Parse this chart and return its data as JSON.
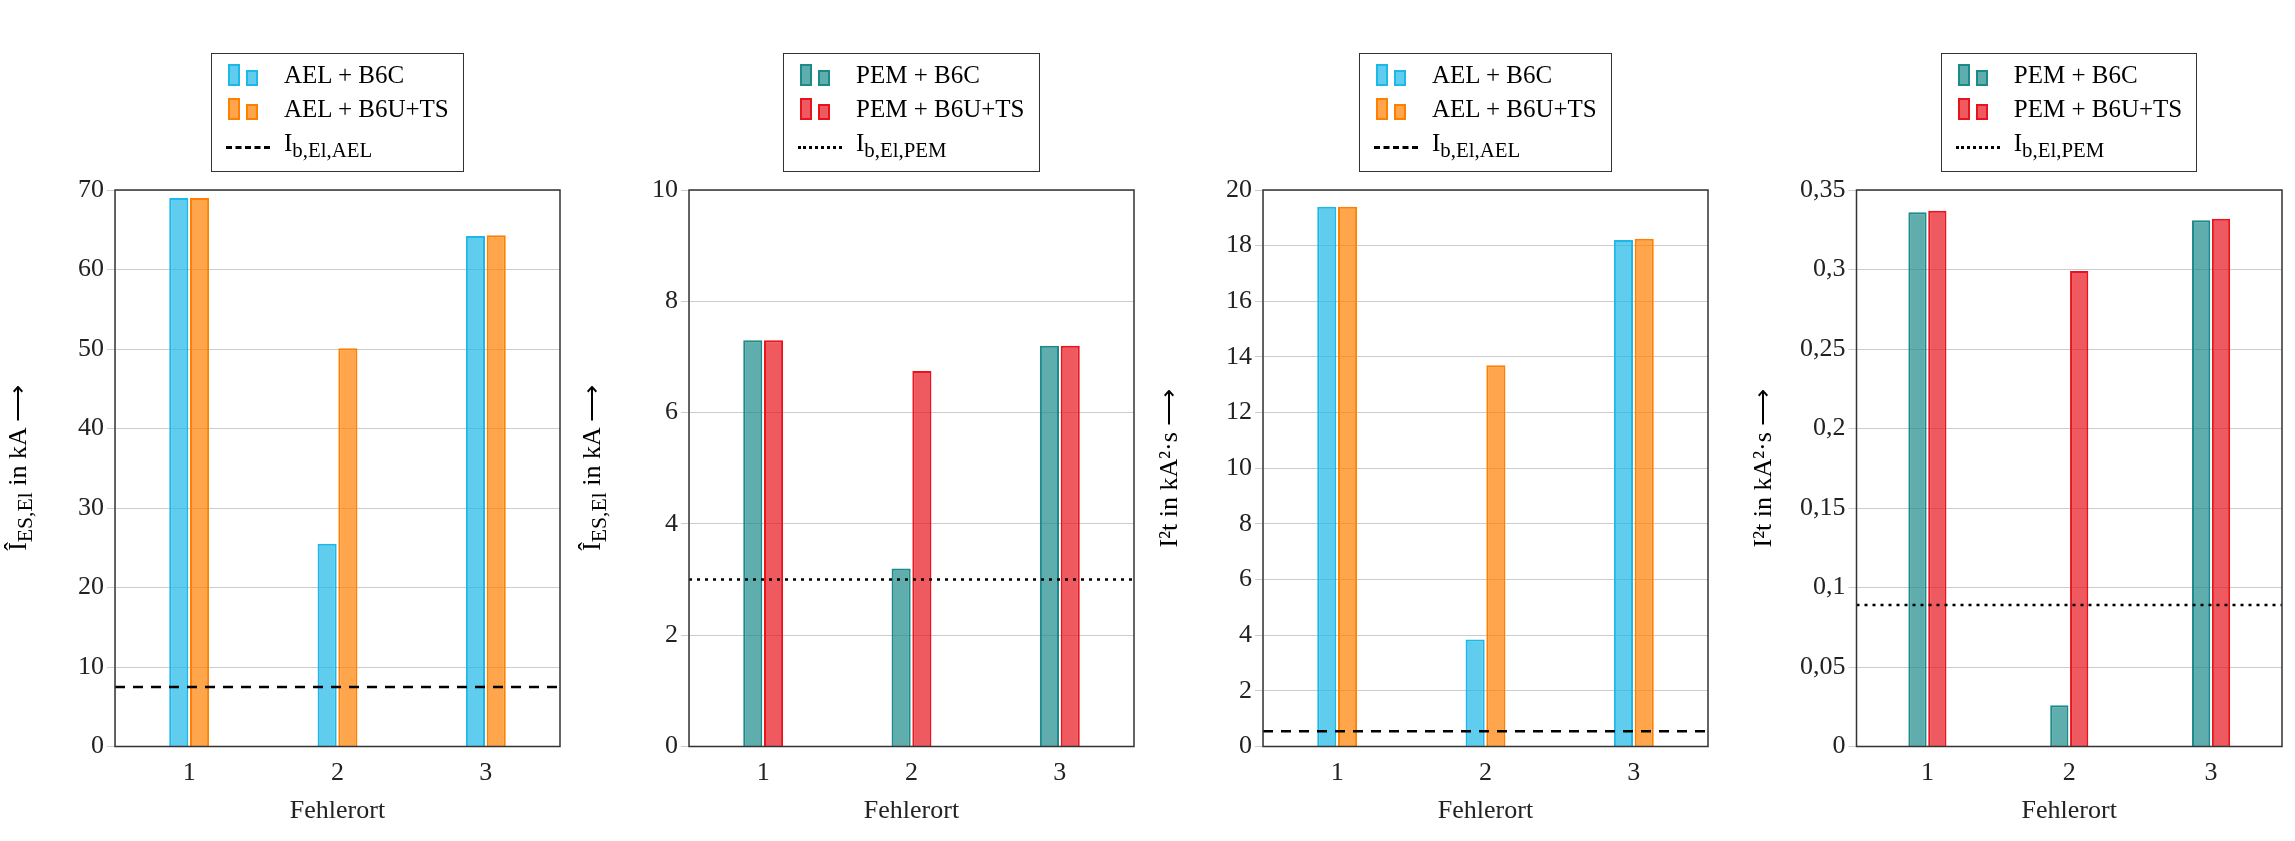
{
  "chart_data": [
    {
      "type": "bar",
      "ylabel": "Î$_{ES,El}$ in kA ⟶",
      "xlabel": "Fehlerort",
      "categories": [
        "1",
        "2",
        "3"
      ],
      "series": [
        {
          "name": "AEL + B6C",
          "color": "#1cb8e8",
          "values": [
            69,
            25.5,
            64.2
          ]
        },
        {
          "name": "AEL + B6U+TS",
          "color": "#ff8000",
          "values": [
            69,
            50.1,
            64.3
          ]
        }
      ],
      "ylim": [
        0,
        70
      ],
      "yticks": [
        0,
        10,
        20,
        30,
        40,
        50,
        60,
        70
      ],
      "grid": "y",
      "legend": "top",
      "ref_lines": [
        {
          "axis": "y",
          "value": 7.5,
          "label": "I$_{b,El,AEL}$",
          "color": "#000000",
          "line_style": "dashed"
        }
      ]
    },
    {
      "type": "bar",
      "ylabel": "Î$_{ES,El}$ in kA ⟶",
      "xlabel": "Fehlerort",
      "categories": [
        "1",
        "2",
        "3"
      ],
      "series": [
        {
          "name": "PEM + B6C",
          "color": "#1b8a8a",
          "values": [
            7.3,
            3.2,
            7.2
          ]
        },
        {
          "name": "PEM + B6U+TS",
          "color": "#e8141d",
          "values": [
            7.3,
            6.75,
            7.2
          ]
        }
      ],
      "ylim": [
        0,
        10
      ],
      "yticks": [
        0,
        2,
        4,
        6,
        8,
        10
      ],
      "grid": "y",
      "legend": "top",
      "ref_lines": [
        {
          "axis": "y",
          "value": 3,
          "label": "I$_{b,El,PEM}$",
          "color": "#000000",
          "line_style": "dotted"
        }
      ]
    },
    {
      "type": "bar",
      "ylabel": "I²t in kA²·s ⟶",
      "xlabel": "Fehlerort",
      "categories": [
        "1",
        "2",
        "3"
      ],
      "series": [
        {
          "name": "AEL + B6C",
          "color": "#1cb8e8",
          "values": [
            19.4,
            3.85,
            18.2
          ]
        },
        {
          "name": "AEL + B6U+TS",
          "color": "#ff8000",
          "values": [
            19.4,
            13.7,
            18.25
          ]
        }
      ],
      "ylim": [
        0,
        20
      ],
      "yticks": [
        0,
        2,
        4,
        6,
        8,
        10,
        12,
        14,
        16,
        18,
        20
      ],
      "grid": "y",
      "legend": "top",
      "ref_lines": [
        {
          "axis": "y",
          "value": 0.55,
          "label": "I$_{b,El,AEL}$",
          "color": "#000000",
          "line_style": "dashed"
        }
      ]
    },
    {
      "type": "bar",
      "ylabel": "I²t in kA²·s ⟶",
      "xlabel": "Fehlerort",
      "categories": [
        "1",
        "2",
        "3"
      ],
      "series": [
        {
          "name": "PEM + B6C",
          "color": "#1b8a8a",
          "values": [
            0.336,
            0.026,
            0.331
          ]
        },
        {
          "name": "PEM + B6U+TS",
          "color": "#e8141d",
          "values": [
            0.337,
            0.299,
            0.332
          ]
        }
      ],
      "ylim": [
        0,
        0.35
      ],
      "yticks": [
        0,
        {
          "value": 0.05,
          "label": "0,05"
        },
        {
          "value": 0.1,
          "label": "0,1"
        },
        {
          "value": 0.15,
          "label": "0,15"
        },
        {
          "value": 0.2,
          "label": "0,2"
        },
        {
          "value": 0.25,
          "label": "0,25"
        },
        {
          "value": 0.3,
          "label": "0,3"
        },
        {
          "value": 0.35,
          "label": "0,35"
        }
      ],
      "grid": "y",
      "legend": "top",
      "ref_lines": [
        {
          "axis": "y",
          "value": 0.089,
          "label": "I$_{b,El,PEM}$",
          "color": "#000000",
          "line_style": "dotted"
        }
      ]
    }
  ]
}
